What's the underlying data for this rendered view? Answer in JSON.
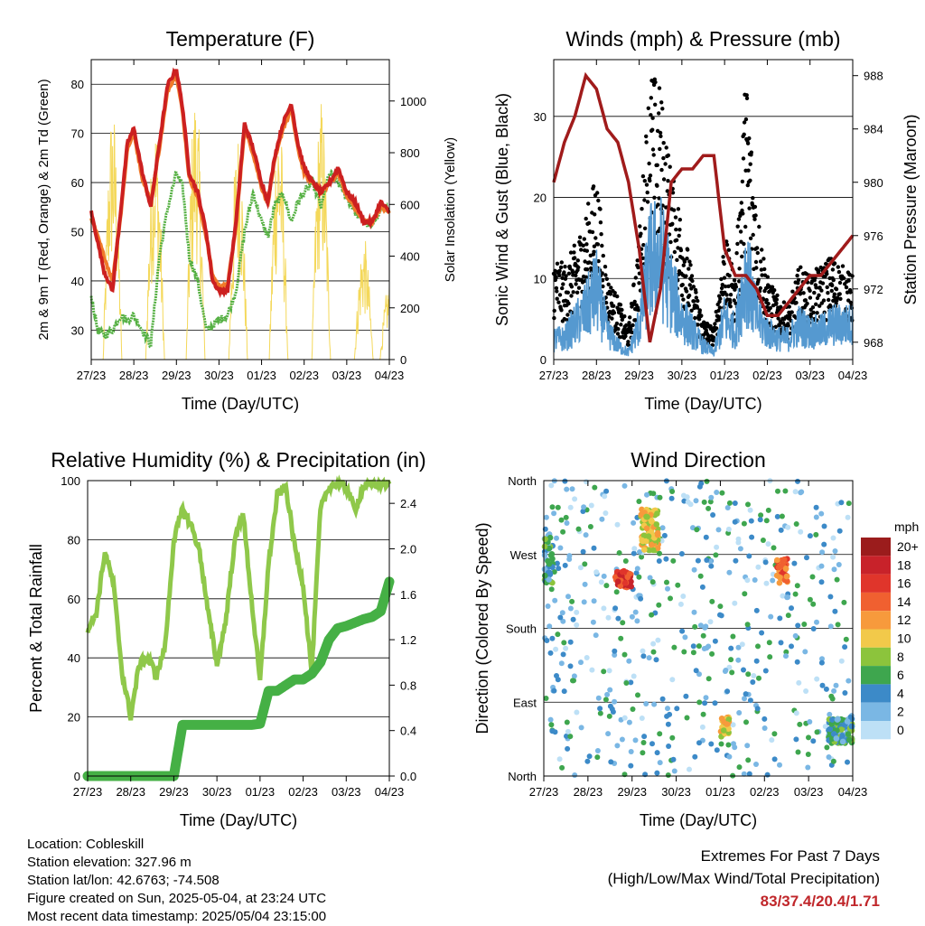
{
  "day_labels": [
    "27/23",
    "28/23",
    "29/23",
    "30/23",
    "01/23",
    "02/23",
    "03/23",
    "04/23"
  ],
  "chart_data": [
    {
      "type": "line",
      "title": "Temperature (F)",
      "xlabel": "Time (Day/UTC)",
      "ylabel": "2m & 9m T (Red, Orange) & 2m Td (Green)",
      "ylabel_right": "Solar Insolation (Yellow)",
      "ylim": [
        24,
        85
      ],
      "yticks": [
        30,
        40,
        50,
        60,
        70,
        80
      ],
      "ylim_right": [
        0,
        1160
      ],
      "yticks_right": [
        0,
        200,
        400,
        600,
        800,
        1000
      ],
      "x_days": [
        0,
        0.15,
        0.3,
        0.5,
        0.7,
        0.85,
        1.0,
        1.2,
        1.4,
        1.6,
        1.8,
        2.0,
        2.15,
        2.3,
        2.5,
        2.7,
        2.85,
        3.0,
        3.2,
        3.4,
        3.6,
        3.8,
        4.0,
        4.15,
        4.3,
        4.5,
        4.7,
        4.85,
        5.0,
        5.2,
        5.4,
        5.6,
        5.8,
        6.0,
        6.2,
        6.4,
        6.6,
        6.8,
        7.0
      ],
      "series": [
        {
          "name": "2m T",
          "color": "#cc2020",
          "values": [
            54,
            48,
            42,
            38,
            55,
            68,
            71,
            62,
            55,
            68,
            80,
            83,
            75,
            62,
            58,
            50,
            40,
            38,
            38,
            52,
            72,
            67,
            60,
            56,
            65,
            72,
            76,
            68,
            63,
            60,
            58,
            60,
            63,
            58,
            56,
            52,
            52,
            56,
            54
          ]
        },
        {
          "name": "9m T",
          "color": "#f07a2a",
          "values": [
            53,
            49,
            45,
            40,
            54,
            67,
            70,
            61,
            56,
            67,
            79,
            82,
            74,
            61,
            57,
            49,
            41,
            39,
            39,
            51,
            71,
            66,
            59,
            56,
            64,
            71,
            75,
            67,
            62,
            60,
            58,
            60,
            62,
            57,
            55,
            52,
            52,
            55,
            54
          ]
        },
        {
          "name": "2m Td",
          "color": "#55b043",
          "values": [
            37,
            30,
            29,
            30,
            33,
            32,
            33,
            30,
            27,
            45,
            55,
            62,
            59,
            45,
            40,
            30,
            31,
            32,
            33,
            38,
            50,
            58,
            52,
            49,
            55,
            58,
            52,
            56,
            58,
            60,
            55,
            62,
            60,
            57,
            54,
            52,
            51,
            55,
            54
          ]
        },
        {
          "name": "Solar Insolation",
          "color": "#f4d85a",
          "peaks": [
            {
              "d": 0.5,
              "v": 1000
            },
            {
              "d": 1.5,
              "v": 960
            },
            {
              "d": 2.45,
              "v": 1060
            },
            {
              "d": 3.45,
              "v": 900
            },
            {
              "d": 4.4,
              "v": 980
            },
            {
              "d": 5.4,
              "v": 1020
            },
            {
              "d": 6.4,
              "v": 480
            },
            {
              "d": 7.0,
              "v": 300
            }
          ]
        }
      ]
    },
    {
      "type": "scatter",
      "title": "Winds (mph) & Pressure (mb)",
      "xlabel": "Time (Day/UTC)",
      "ylabel": "Sonic Wind & Gust (Blue, Black)",
      "ylabel_right": "Station Pressure (Maroon)",
      "ylim": [
        0,
        37
      ],
      "yticks": [
        0,
        10,
        20,
        30
      ],
      "ylim_right": [
        966.7,
        989.2
      ],
      "yticks_right": [
        968,
        972,
        976,
        980,
        984,
        988
      ],
      "x_days": [
        0,
        0.25,
        0.5,
        0.75,
        1.0,
        1.25,
        1.5,
        1.75,
        2.0,
        2.25,
        2.5,
        2.75,
        3.0,
        3.25,
        3.5,
        3.75,
        4.0,
        4.25,
        4.5,
        4.75,
        5.0,
        5.25,
        5.5,
        5.75,
        6.0,
        6.25,
        6.5,
        6.75,
        7.0
      ],
      "series": [
        {
          "name": "Sonic Wind",
          "color": "#5599d0",
          "values": [
            3,
            3,
            5,
            7,
            10,
            4,
            2,
            1,
            5,
            14,
            15,
            10,
            6,
            4,
            2,
            1,
            6,
            4,
            13,
            6,
            4,
            3,
            3,
            5,
            4,
            4,
            5,
            5,
            5
          ]
        },
        {
          "name": "Gust",
          "color": "#000000",
          "values": [
            10,
            9,
            11,
            14,
            18,
            8,
            6,
            3,
            12,
            28,
            26,
            18,
            14,
            8,
            4,
            3,
            12,
            8,
            28,
            15,
            8,
            6,
            5,
            9,
            8,
            9,
            10,
            9,
            8
          ]
        },
        {
          "name": "Station Pressure",
          "color": "#a01b1b",
          "values": [
            980,
            983,
            985,
            988,
            987,
            984,
            983,
            980,
            975,
            968,
            972,
            980,
            981,
            981,
            982,
            982,
            975,
            973,
            973,
            972,
            970,
            970,
            971,
            972,
            973,
            973,
            974,
            975,
            976
          ]
        }
      ]
    },
    {
      "type": "line",
      "title": "Relative Humidity (%) & Precipitation (in)",
      "xlabel": "Time (Day/UTC)",
      "ylabel": "Percent & Total Rainfall",
      "ylim": [
        0,
        100
      ],
      "yticks": [
        0,
        20,
        40,
        60,
        80,
        100
      ],
      "ylim_right": [
        0,
        2.6
      ],
      "yticks_right": [
        0.0,
        0.4,
        0.8,
        1.2,
        1.6,
        2.0,
        2.4
      ],
      "x_days": [
        0,
        0.2,
        0.4,
        0.6,
        0.8,
        1.0,
        1.2,
        1.4,
        1.6,
        1.8,
        2.0,
        2.2,
        2.4,
        2.6,
        2.8,
        3.0,
        3.2,
        3.4,
        3.6,
        3.8,
        4.0,
        4.2,
        4.4,
        4.6,
        4.8,
        5.0,
        5.2,
        5.4,
        5.6,
        5.8,
        6.0,
        6.2,
        6.4,
        6.6,
        6.8,
        7.0
      ],
      "series": [
        {
          "name": "Relative Humidity",
          "color": "#8fc84a",
          "values": [
            50,
            55,
            76,
            65,
            35,
            20,
            38,
            40,
            34,
            44,
            80,
            90,
            85,
            76,
            55,
            38,
            52,
            78,
            90,
            60,
            32,
            72,
            95,
            98,
            78,
            65,
            35,
            90,
            98,
            99,
            98,
            90,
            98,
            99,
            99,
            99
          ]
        },
        {
          "name": "Total Rainfall",
          "color": "#45b045",
          "values": [
            0,
            0,
            0,
            0,
            0,
            0,
            0,
            0,
            0,
            0,
            0,
            0.45,
            0.45,
            0.45,
            0.45,
            0.45,
            0.45,
            0.45,
            0.45,
            0.45,
            0.46,
            0.75,
            0.75,
            0.8,
            0.85,
            0.85,
            0.9,
            1.0,
            1.2,
            1.3,
            1.32,
            1.35,
            1.38,
            1.4,
            1.45,
            1.71
          ]
        }
      ]
    },
    {
      "type": "scatter",
      "title": "Wind Direction",
      "xlabel": "Time (Day/UTC)",
      "ylabel": "Direction (Colored By Speed)",
      "yticks": [
        "North",
        "East",
        "South",
        "West",
        "North"
      ],
      "legend_title": "mph",
      "legend_labels": [
        "20+",
        "18",
        "16",
        "14",
        "12",
        "10",
        "8",
        "6",
        "4",
        "2",
        "0"
      ],
      "legend_colors": [
        "#9b1c1c",
        "#c8222a",
        "#e0352b",
        "#f06030",
        "#f79a3c",
        "#f2c94a",
        "#8cc43c",
        "#3ea64e",
        "#3c8ac8",
        "#7ab7e4",
        "#bde0f6"
      ],
      "clusters": [
        {
          "d": 0.1,
          "dir": 265,
          "spread_d": 0.12,
          "spread_dir": 30,
          "speed": 5,
          "n": 40
        },
        {
          "d": 1.8,
          "dir": 240,
          "spread_d": 0.18,
          "spread_dir": 10,
          "speed": 16,
          "n": 70
        },
        {
          "d": 2.4,
          "dir": 300,
          "spread_d": 0.2,
          "spread_dir": 25,
          "speed": 10,
          "n": 90
        },
        {
          "d": 4.1,
          "dir": 60,
          "spread_d": 0.1,
          "spread_dir": 12,
          "speed": 10,
          "n": 45
        },
        {
          "d": 5.4,
          "dir": 250,
          "spread_d": 0.12,
          "spread_dir": 15,
          "speed": 14,
          "n": 40
        },
        {
          "d": 6.75,
          "dir": 55,
          "spread_d": 0.3,
          "spread_dir": 15,
          "speed": 5,
          "n": 110
        }
      ]
    }
  ],
  "footer": {
    "location": "Location: Cobleskill",
    "elevation": "Station elevation: 327.96 m",
    "latlon": "Station lat/lon: 42.6763; -74.508",
    "created": "Figure created on Sun, 2025-05-04, at 23:24 UTC",
    "recent": "Most recent data timestamp: 2025/05/04 23:15:00"
  },
  "extremes": {
    "line1": "Extremes For Past 7 Days",
    "line2": "(High/Low/Max Wind/Total Precipitation)",
    "value": "83/37.4/20.4/1.71"
  }
}
